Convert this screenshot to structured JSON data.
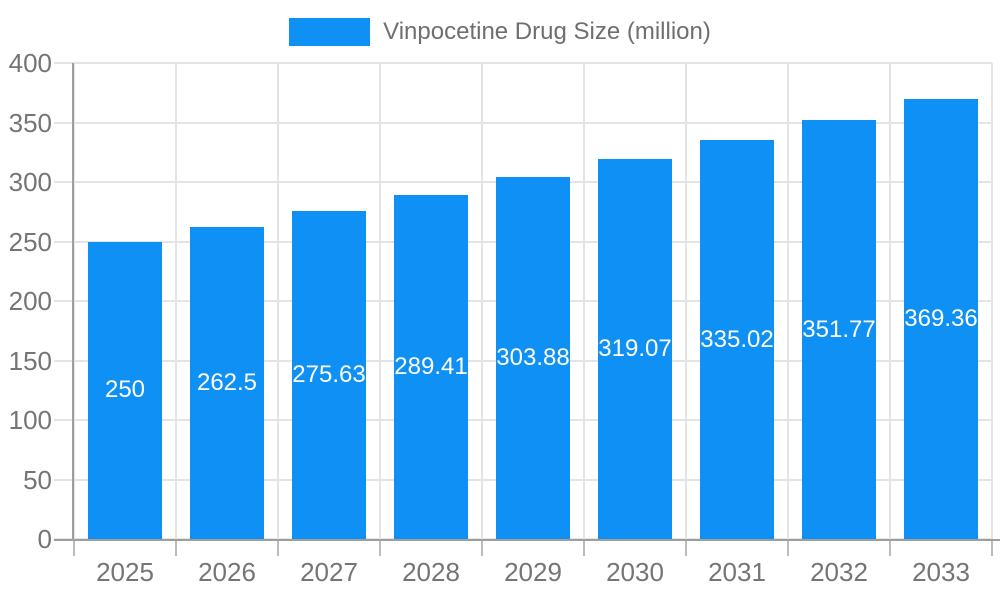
{
  "chart_data": {
    "type": "bar",
    "title": "",
    "legend": "Vinpocetine Drug Size (million)",
    "legend_position": "top",
    "categories": [
      "2025",
      "2026",
      "2027",
      "2028",
      "2029",
      "2030",
      "2031",
      "2032",
      "2033"
    ],
    "values": [
      250,
      262.5,
      275.63,
      289.41,
      303.88,
      319.07,
      335.02,
      351.77,
      369.36
    ],
    "yticks": [
      0,
      50,
      100,
      150,
      200,
      250,
      300,
      350,
      400
    ],
    "ylim": [
      0,
      400
    ],
    "xlabel": "",
    "ylabel": "",
    "grid": true
  },
  "colors": {
    "bar": "#0e90f5",
    "grid": "#e4e4e4",
    "axis": "#9e9e9e",
    "tick": "#bdbdbd",
    "axis_text": "#757575",
    "value_text": "#ffffff",
    "legend_text": "#6f6f6f",
    "background": "#ffffff"
  }
}
